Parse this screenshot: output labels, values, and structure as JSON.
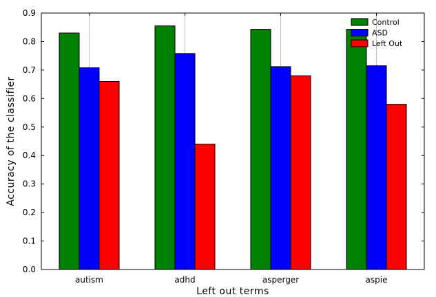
{
  "chart_data": {
    "type": "bar",
    "title": "",
    "xlabel": "Left out terms",
    "ylabel": "Accuracy of the classifier",
    "categories": [
      "autism",
      "adhd",
      "asperger",
      "aspie"
    ],
    "ylim": [
      0,
      0.9
    ],
    "yticks": [
      "0.0",
      "0.1",
      "0.2",
      "0.3",
      "0.4",
      "0.5",
      "0.6",
      "0.7",
      "0.8",
      "0.9"
    ],
    "grid": "vertical",
    "legend_position": "top-right",
    "series": [
      {
        "name": "Control",
        "color": "#008000",
        "values": [
          0.83,
          0.855,
          0.843,
          0.843
        ]
      },
      {
        "name": "ASD",
        "color": "#0000ff",
        "values": [
          0.708,
          0.758,
          0.712,
          0.715
        ]
      },
      {
        "name": "Left Out",
        "color": "#ff0000",
        "values": [
          0.66,
          0.44,
          0.68,
          0.58
        ]
      }
    ]
  }
}
